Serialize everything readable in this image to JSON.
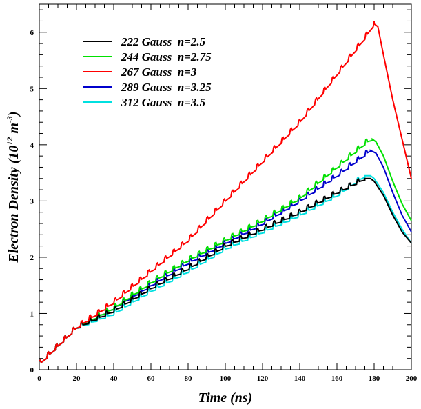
{
  "chart_data": {
    "type": "line",
    "xlabel": "Time (ns)",
    "ylabel_main": "Electron Density (10",
    "ylabel_sup1": "12",
    "ylabel_mid": " m",
    "ylabel_sup2": "-3",
    "ylabel_end": ")",
    "xlim": [
      0,
      200
    ],
    "ylim": [
      0,
      6.5
    ],
    "x_ticks": [
      "0",
      "20",
      "40",
      "60",
      "80",
      "100",
      "120",
      "140",
      "160",
      "180",
      "200"
    ],
    "y_ticks": [
      "0",
      "1",
      "2",
      "3",
      "4",
      "5",
      "6"
    ],
    "grid": false,
    "legend_position": "top-left",
    "series": [
      {
        "name": "222 Gauss  n=2.5",
        "color": "#000000",
        "x": [
          0,
          20,
          40,
          60,
          80,
          100,
          120,
          140,
          160,
          175,
          178,
          180,
          185,
          190,
          195,
          200
        ],
        "y": [
          0.1,
          0.75,
          1.05,
          1.45,
          1.8,
          2.2,
          2.5,
          2.8,
          3.15,
          3.4,
          3.4,
          3.35,
          3.1,
          2.75,
          2.45,
          2.25
        ]
      },
      {
        "name": "244 Gauss  n=2.75",
        "color": "#00e000",
        "x": [
          0,
          20,
          40,
          60,
          80,
          100,
          120,
          140,
          160,
          176,
          179,
          181,
          185,
          190,
          195,
          200
        ],
        "y": [
          0.1,
          0.75,
          1.1,
          1.55,
          1.95,
          2.3,
          2.65,
          3.05,
          3.6,
          4.05,
          4.1,
          4.05,
          3.8,
          3.35,
          2.95,
          2.65
        ]
      },
      {
        "name": "267 Gauss  n=3",
        "color": "#ff0000",
        "x": [
          0,
          20,
          40,
          60,
          80,
          100,
          120,
          140,
          160,
          175,
          180,
          182,
          185,
          190,
          195,
          200
        ],
        "y": [
          0.1,
          0.75,
          1.2,
          1.75,
          2.3,
          3.0,
          3.7,
          4.4,
          5.25,
          5.9,
          6.15,
          6.1,
          5.6,
          4.8,
          4.1,
          3.4
        ]
      },
      {
        "name": "289 Gauss  n=3.25",
        "color": "#0000cc",
        "x": [
          0,
          20,
          40,
          60,
          80,
          100,
          120,
          140,
          160,
          176,
          178,
          181,
          185,
          190,
          195,
          200
        ],
        "y": [
          0.1,
          0.75,
          1.1,
          1.5,
          1.9,
          2.25,
          2.6,
          3.0,
          3.45,
          3.85,
          3.9,
          3.85,
          3.6,
          3.15,
          2.75,
          2.45
        ]
      },
      {
        "name": "312 Gauss  n=3.5",
        "color": "#00e0e0",
        "x": [
          0,
          20,
          40,
          60,
          80,
          100,
          120,
          140,
          160,
          175,
          178,
          180,
          185,
          190,
          195,
          200
        ],
        "y": [
          0.1,
          0.75,
          1.0,
          1.4,
          1.75,
          2.15,
          2.45,
          2.75,
          3.1,
          3.45,
          3.45,
          3.4,
          3.15,
          2.8,
          2.5,
          2.25
        ]
      }
    ]
  }
}
